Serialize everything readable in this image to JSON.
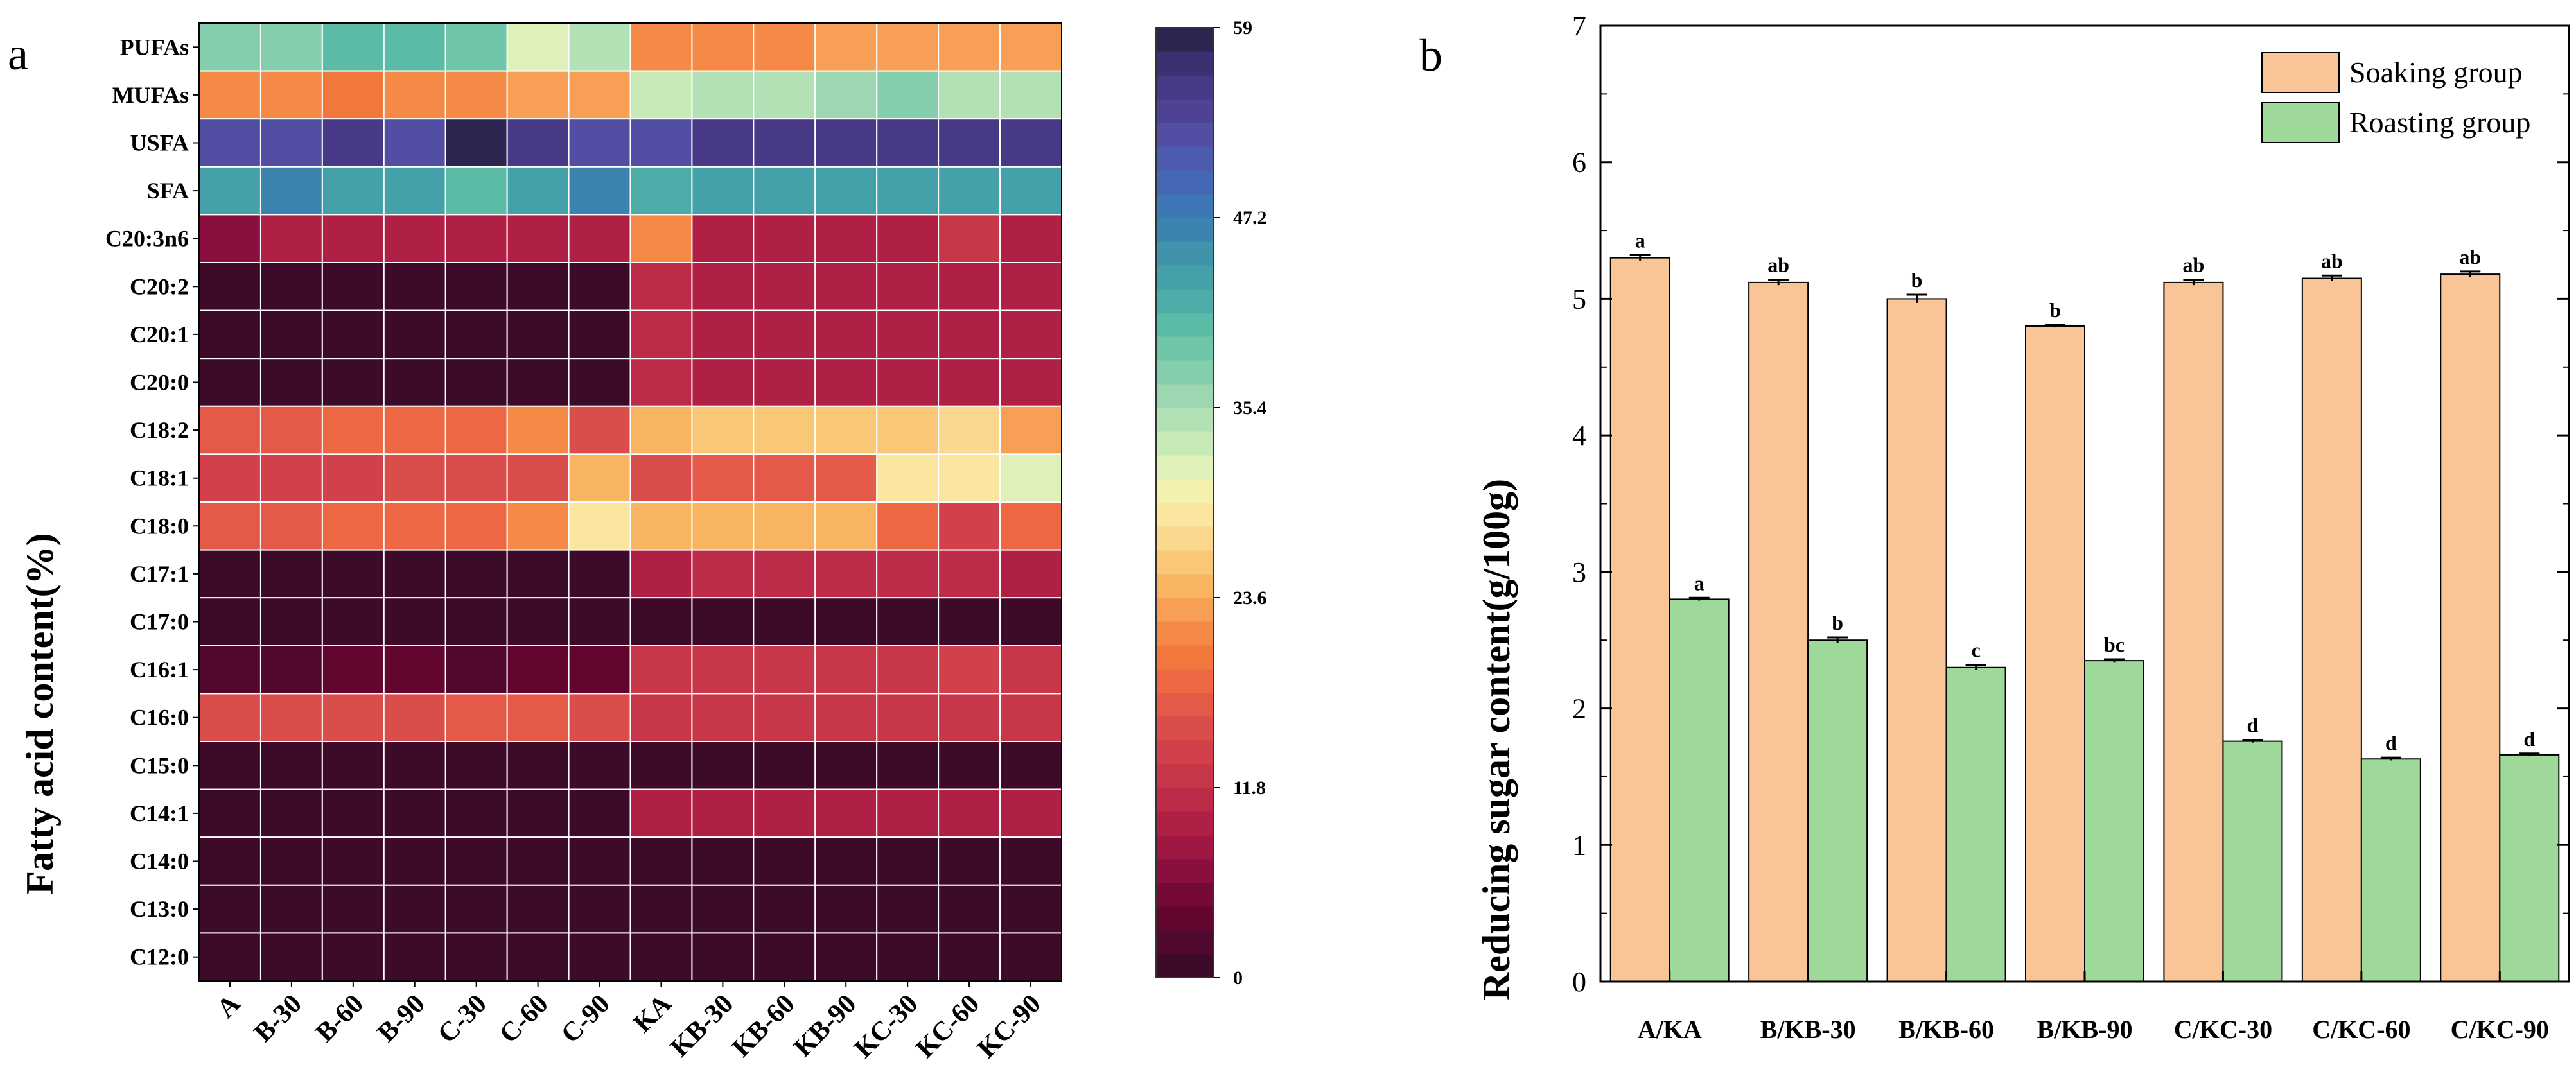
{
  "chart_data": [
    {
      "type": "heatmap",
      "panel_label": "a",
      "ylabel": "Fatty acid content(%)",
      "rows": [
        "PUFAs",
        "MUFAs",
        "USFA",
        "SFA",
        "C20:3n6",
        "C20:2",
        "C20:1",
        "C20:0",
        "C18:2",
        "C18:1",
        "C18:0",
        "C17:1",
        "C17:0",
        "C16:1",
        "C16:0",
        "C15:0",
        "C14:1",
        "C14:0",
        "C13:0",
        "C12:0"
      ],
      "columns": [
        "A",
        "B-30",
        "B-60",
        "B-90",
        "C-30",
        "C-60",
        "C-90",
        "KA",
        "KB-30",
        "KB-60",
        "KB-90",
        "KC-30",
        "KC-60",
        "KC-90"
      ],
      "values": [
        [
          37,
          38,
          40,
          41,
          39,
          31,
          34,
          22,
          22,
          22,
          23,
          23,
          23,
          23
        ],
        [
          22,
          21,
          20,
          21,
          21,
          23,
          23,
          33,
          35,
          35,
          36,
          37,
          35,
          35
        ],
        [
          52,
          52,
          55,
          53,
          59,
          55,
          53,
          52,
          56,
          56,
          55,
          56,
          56,
          56
        ],
        [
          44,
          46,
          44,
          44,
          40,
          44,
          46,
          42,
          44,
          44,
          44,
          44,
          44,
          44
        ],
        [
          6,
          10,
          9,
          9,
          9,
          10,
          9,
          22,
          10,
          10,
          10,
          10,
          12,
          10
        ],
        [
          0,
          0,
          0,
          0,
          0,
          0,
          0,
          11,
          10,
          10,
          10,
          10,
          10,
          10
        ],
        [
          0,
          0,
          0,
          0,
          0,
          0,
          0,
          11,
          10,
          10,
          10,
          10,
          10,
          10
        ],
        [
          0,
          0,
          0,
          0,
          0,
          0,
          0,
          11,
          10,
          10,
          10,
          10,
          10,
          10
        ],
        [
          17,
          17,
          19,
          19,
          19,
          21,
          16,
          25,
          26,
          26,
          26,
          26,
          28,
          23
        ],
        [
          14,
          14,
          14,
          15,
          15,
          15,
          25,
          15,
          17,
          17,
          17,
          29,
          29,
          31
        ],
        [
          17,
          17,
          19,
          19,
          19,
          21,
          29,
          25,
          25,
          25,
          25,
          18,
          14,
          18
        ],
        [
          0,
          0,
          0,
          0,
          0,
          0,
          0,
          10,
          11,
          11,
          11,
          11,
          11,
          10
        ],
        [
          0,
          0,
          1,
          1,
          1,
          1,
          0,
          0,
          0,
          1,
          1,
          0,
          1,
          1
        ],
        [
          2,
          2,
          3,
          3,
          2,
          3,
          3,
          12,
          12,
          12,
          12,
          12,
          14,
          12
        ],
        [
          15,
          15,
          16,
          16,
          17,
          17,
          16,
          12,
          12,
          12,
          12,
          12,
          12,
          12
        ],
        [
          0,
          0,
          0,
          0,
          0,
          0,
          0,
          0,
          0,
          0,
          0,
          0,
          0,
          0
        ],
        [
          0,
          0,
          0,
          0,
          0,
          0,
          0,
          10,
          10,
          10,
          10,
          10,
          10,
          10
        ],
        [
          0,
          0,
          0,
          0,
          0,
          0,
          0,
          0,
          0,
          0,
          0,
          0,
          0,
          0
        ],
        [
          0,
          0,
          0,
          0,
          0,
          0,
          0,
          0,
          0,
          0,
          0,
          0,
          0,
          0
        ],
        [
          0,
          0,
          0,
          0,
          0,
          0,
          0,
          0,
          0,
          0,
          0,
          0,
          0,
          0
        ]
      ],
      "colorbar": {
        "range": [
          0,
          59
        ],
        "ticks": [
          "0",
          "11.8",
          "23.6",
          "35.4",
          "47.2",
          "59"
        ],
        "colors": [
          "#3e0a2a",
          "#50082e",
          "#620630",
          "#760a36",
          "#8a0f3e",
          "#9e1842",
          "#b01f44",
          "#bc2b48",
          "#c8364a",
          "#d1404b",
          "#d94d4a",
          "#e45948",
          "#ec6742",
          "#f2773d",
          "#f58a46",
          "#f79f55",
          "#f8b461",
          "#fac777",
          "#fbd88e",
          "#fbe6a0",
          "#f4f1b0",
          "#dff1b8",
          "#c8eab7",
          "#b1e1b4",
          "#9cd7b1",
          "#85cead",
          "#6fc5a8",
          "#5cbba6",
          "#4daca7",
          "#44a0a9",
          "#3f93aa",
          "#3a84af",
          "#3d77b6",
          "#4568b6",
          "#4d5bae",
          "#514ea3",
          "#4e4295",
          "#473985",
          "#3d3072",
          "#2e2450"
        ]
      }
    },
    {
      "type": "bar",
      "panel_label": "b",
      "ylabel": "Reducing sugar content(g/100g)",
      "categories": [
        "A/KA",
        "B/KB-30",
        "B/KB-60",
        "B/KB-90",
        "C/KC-30",
        "C/KC-60",
        "C/KC-90"
      ],
      "ylim": [
        0,
        7
      ],
      "yticks": [
        "0",
        "1",
        "2",
        "3",
        "4",
        "5",
        "6",
        "7"
      ],
      "legend_position": "top-right",
      "series": [
        {
          "name": "Soaking  group",
          "color": "#f9c597",
          "values": [
            5.3,
            5.12,
            5.0,
            4.8,
            5.12,
            5.15,
            5.18
          ],
          "errors": [
            0.02,
            0.02,
            0.03,
            0.01,
            0.02,
            0.02,
            0.02
          ],
          "letters": [
            "a",
            "ab",
            "b",
            "b",
            "ab",
            "ab",
            "ab"
          ]
        },
        {
          "name": "Roasting group",
          "color": "#9ed99a",
          "values": [
            2.8,
            2.5,
            2.3,
            2.35,
            1.76,
            1.63,
            1.66
          ],
          "errors": [
            0.01,
            0.02,
            0.02,
            0.01,
            0.01,
            0.01,
            0.01
          ],
          "letters": [
            "a",
            "b",
            "c",
            "bc",
            "d",
            "d",
            "d"
          ]
        }
      ]
    }
  ]
}
